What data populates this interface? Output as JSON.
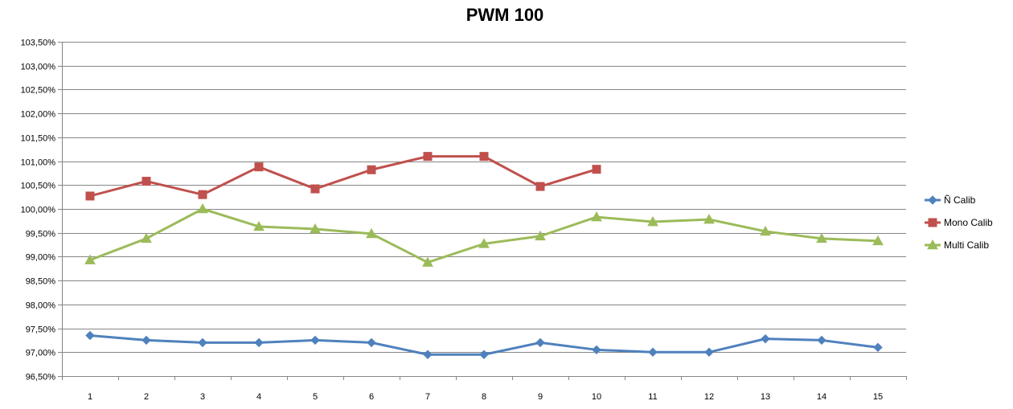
{
  "chart_data": {
    "type": "line",
    "title": "PWM 100",
    "xlabel": "",
    "ylabel": "",
    "categories": [
      "1",
      "2",
      "3",
      "4",
      "5",
      "6",
      "7",
      "8",
      "9",
      "10",
      "11",
      "12",
      "13",
      "14",
      "15"
    ],
    "ylim": [
      96.5,
      103.5
    ],
    "ystep": 0.5,
    "ytick_labels": [
      "96,50%",
      "97,00%",
      "97,50%",
      "98,00%",
      "98,50%",
      "99,00%",
      "99,50%",
      "100,00%",
      "100,50%",
      "101,00%",
      "101,50%",
      "102,00%",
      "102,50%",
      "103,00%",
      "103,50%"
    ],
    "grid": true,
    "legend_position": "right",
    "series": [
      {
        "name": "Ñ Calib",
        "color": "#4F81BD",
        "marker": "diamond",
        "values": [
          97.35,
          97.25,
          97.2,
          97.2,
          97.25,
          97.2,
          96.95,
          96.95,
          97.2,
          97.05,
          97.0,
          97.0,
          97.28,
          97.25,
          97.1
        ]
      },
      {
        "name": "Mono Calib",
        "color": "#C0504D",
        "marker": "square",
        "values": [
          100.27,
          100.58,
          100.3,
          100.88,
          100.42,
          100.82,
          101.1,
          101.1,
          100.47,
          100.83,
          null,
          null,
          null,
          null,
          null
        ]
      },
      {
        "name": "Multi Calib",
        "color": "#9BBB59",
        "marker": "triangle",
        "values": [
          98.93,
          99.38,
          100.0,
          99.63,
          99.58,
          99.48,
          98.88,
          99.27,
          99.43,
          99.83,
          99.73,
          99.78,
          99.53,
          99.38,
          99.33
        ]
      }
    ]
  }
}
